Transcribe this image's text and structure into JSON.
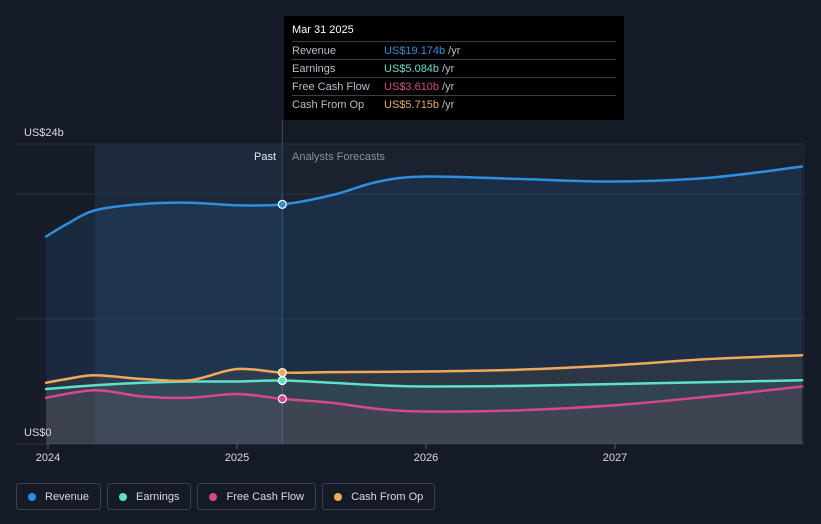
{
  "chart_data": {
    "type": "line",
    "y_unit_top": "US$24b",
    "y_unit_bottom": "US$0",
    "ylim": [
      0,
      24
    ],
    "x_ticks": [
      "2024",
      "2025",
      "2026",
      "2027"
    ],
    "regions": {
      "past": "Past",
      "forecast": "Analysts Forecasts"
    },
    "divider_date": "2025.24",
    "series": [
      {
        "name": "Revenue",
        "color": "#2e8fe0",
        "points": [
          [
            2023.99,
            16.6
          ],
          [
            2024.1,
            17.6
          ],
          [
            2024.25,
            18.7
          ],
          [
            2024.5,
            19.2
          ],
          [
            2024.75,
            19.3
          ],
          [
            2025.0,
            19.1
          ],
          [
            2025.24,
            19.17
          ],
          [
            2025.5,
            19.9
          ],
          [
            2025.75,
            21.0
          ],
          [
            2026.0,
            21.4
          ],
          [
            2026.5,
            21.2
          ],
          [
            2027.0,
            21.0
          ],
          [
            2027.5,
            21.3
          ],
          [
            2027.99,
            22.2
          ]
        ]
      },
      {
        "name": "Earnings",
        "color": "#5fe0c8",
        "points": [
          [
            2023.99,
            4.4
          ],
          [
            2024.25,
            4.7
          ],
          [
            2024.5,
            4.9
          ],
          [
            2024.75,
            5.0
          ],
          [
            2025.0,
            5.0
          ],
          [
            2025.24,
            5.08
          ],
          [
            2025.5,
            4.9
          ],
          [
            2025.75,
            4.7
          ],
          [
            2026.0,
            4.6
          ],
          [
            2026.5,
            4.65
          ],
          [
            2027.0,
            4.8
          ],
          [
            2027.5,
            4.95
          ],
          [
            2027.99,
            5.1
          ]
        ]
      },
      {
        "name": "Free Cash Flow",
        "color": "#d9478a",
        "points": [
          [
            2023.99,
            3.7
          ],
          [
            2024.25,
            4.3
          ],
          [
            2024.5,
            3.8
          ],
          [
            2024.75,
            3.7
          ],
          [
            2025.0,
            4.0
          ],
          [
            2025.24,
            3.61
          ],
          [
            2025.5,
            3.3
          ],
          [
            2025.75,
            2.8
          ],
          [
            2026.0,
            2.6
          ],
          [
            2026.5,
            2.7
          ],
          [
            2027.0,
            3.1
          ],
          [
            2027.5,
            3.8
          ],
          [
            2027.99,
            4.6
          ]
        ]
      },
      {
        "name": "Cash From Op",
        "color": "#f0a85a",
        "points": [
          [
            2023.99,
            4.9
          ],
          [
            2024.1,
            5.2
          ],
          [
            2024.25,
            5.5
          ],
          [
            2024.5,
            5.2
          ],
          [
            2024.75,
            5.1
          ],
          [
            2025.0,
            6.0
          ],
          [
            2025.24,
            5.715
          ],
          [
            2025.5,
            5.75
          ],
          [
            2026.0,
            5.8
          ],
          [
            2026.5,
            5.95
          ],
          [
            2027.0,
            6.3
          ],
          [
            2027.5,
            6.8
          ],
          [
            2027.99,
            7.1
          ]
        ]
      }
    ]
  },
  "tooltip": {
    "date": "Mar 31 2025",
    "unit": "/yr",
    "rows": [
      {
        "label": "Revenue",
        "value": "US$19.174b",
        "color": "#2e8fe0"
      },
      {
        "label": "Earnings",
        "value": "US$5.084b",
        "color": "#5fe0c8"
      },
      {
        "label": "Free Cash Flow",
        "value": "US$3.610b",
        "color": "#d9478a"
      },
      {
        "label": "Cash From Op",
        "value": "US$5.715b",
        "color": "#f0a85a"
      }
    ]
  },
  "legend": [
    {
      "label": "Revenue",
      "color": "#2e8fe0"
    },
    {
      "label": "Earnings",
      "color": "#5fe0c8"
    },
    {
      "label": "Free Cash Flow",
      "color": "#d9478a"
    },
    {
      "label": "Cash From Op",
      "color": "#f0a85a"
    }
  ]
}
